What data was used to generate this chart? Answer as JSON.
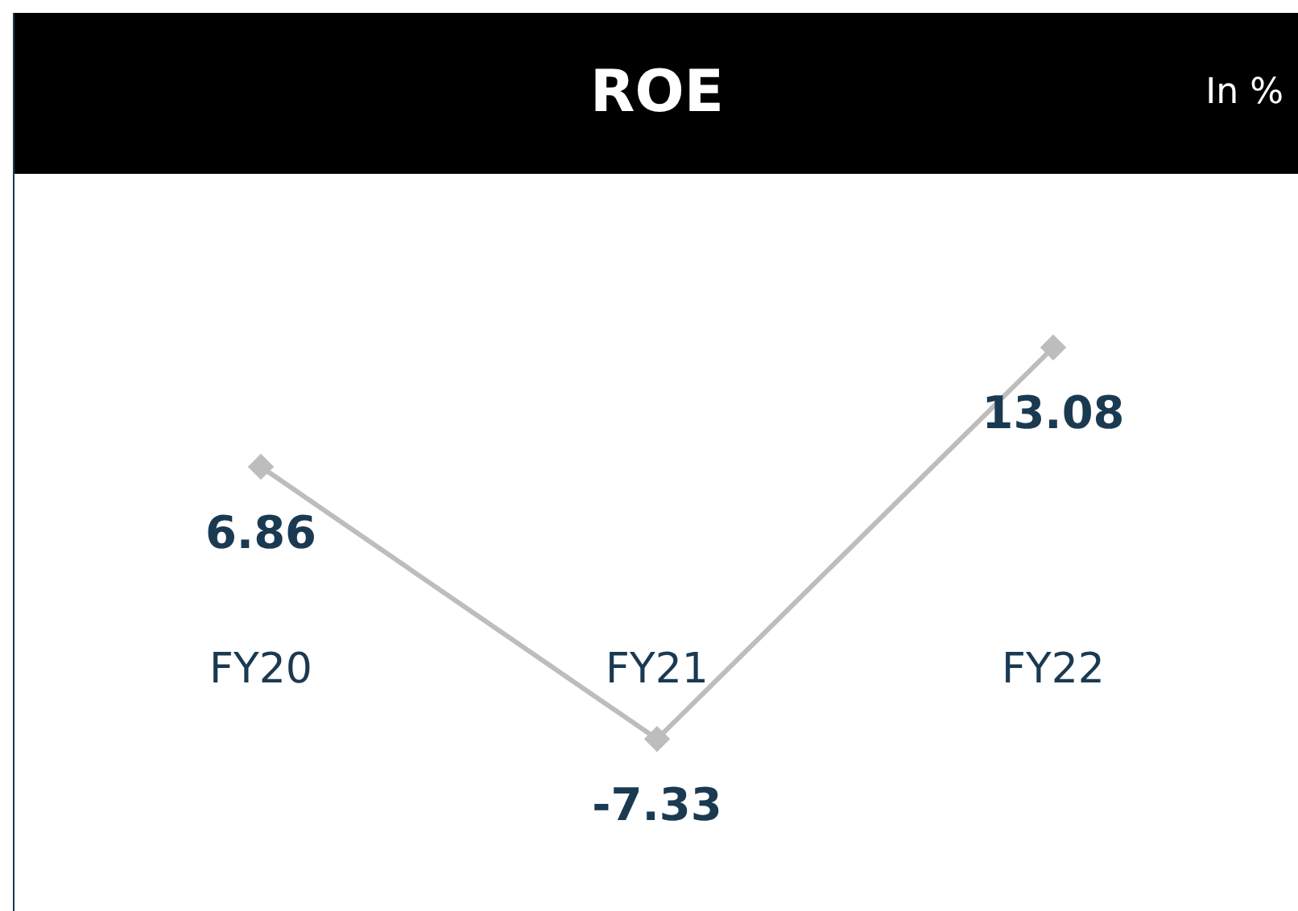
{
  "chart_data": {
    "type": "line",
    "title": "ROE",
    "subtitle": "In %",
    "categories": [
      "FY20",
      "FY21",
      "FY22"
    ],
    "series": [
      {
        "color": "#bdbdbd",
        "values": [
          6.86,
          -7.33,
          13.08
        ]
      }
    ],
    "marker": "diamond",
    "line_style": "solid",
    "data_labels": true,
    "grid": false,
    "legend": false
  }
}
